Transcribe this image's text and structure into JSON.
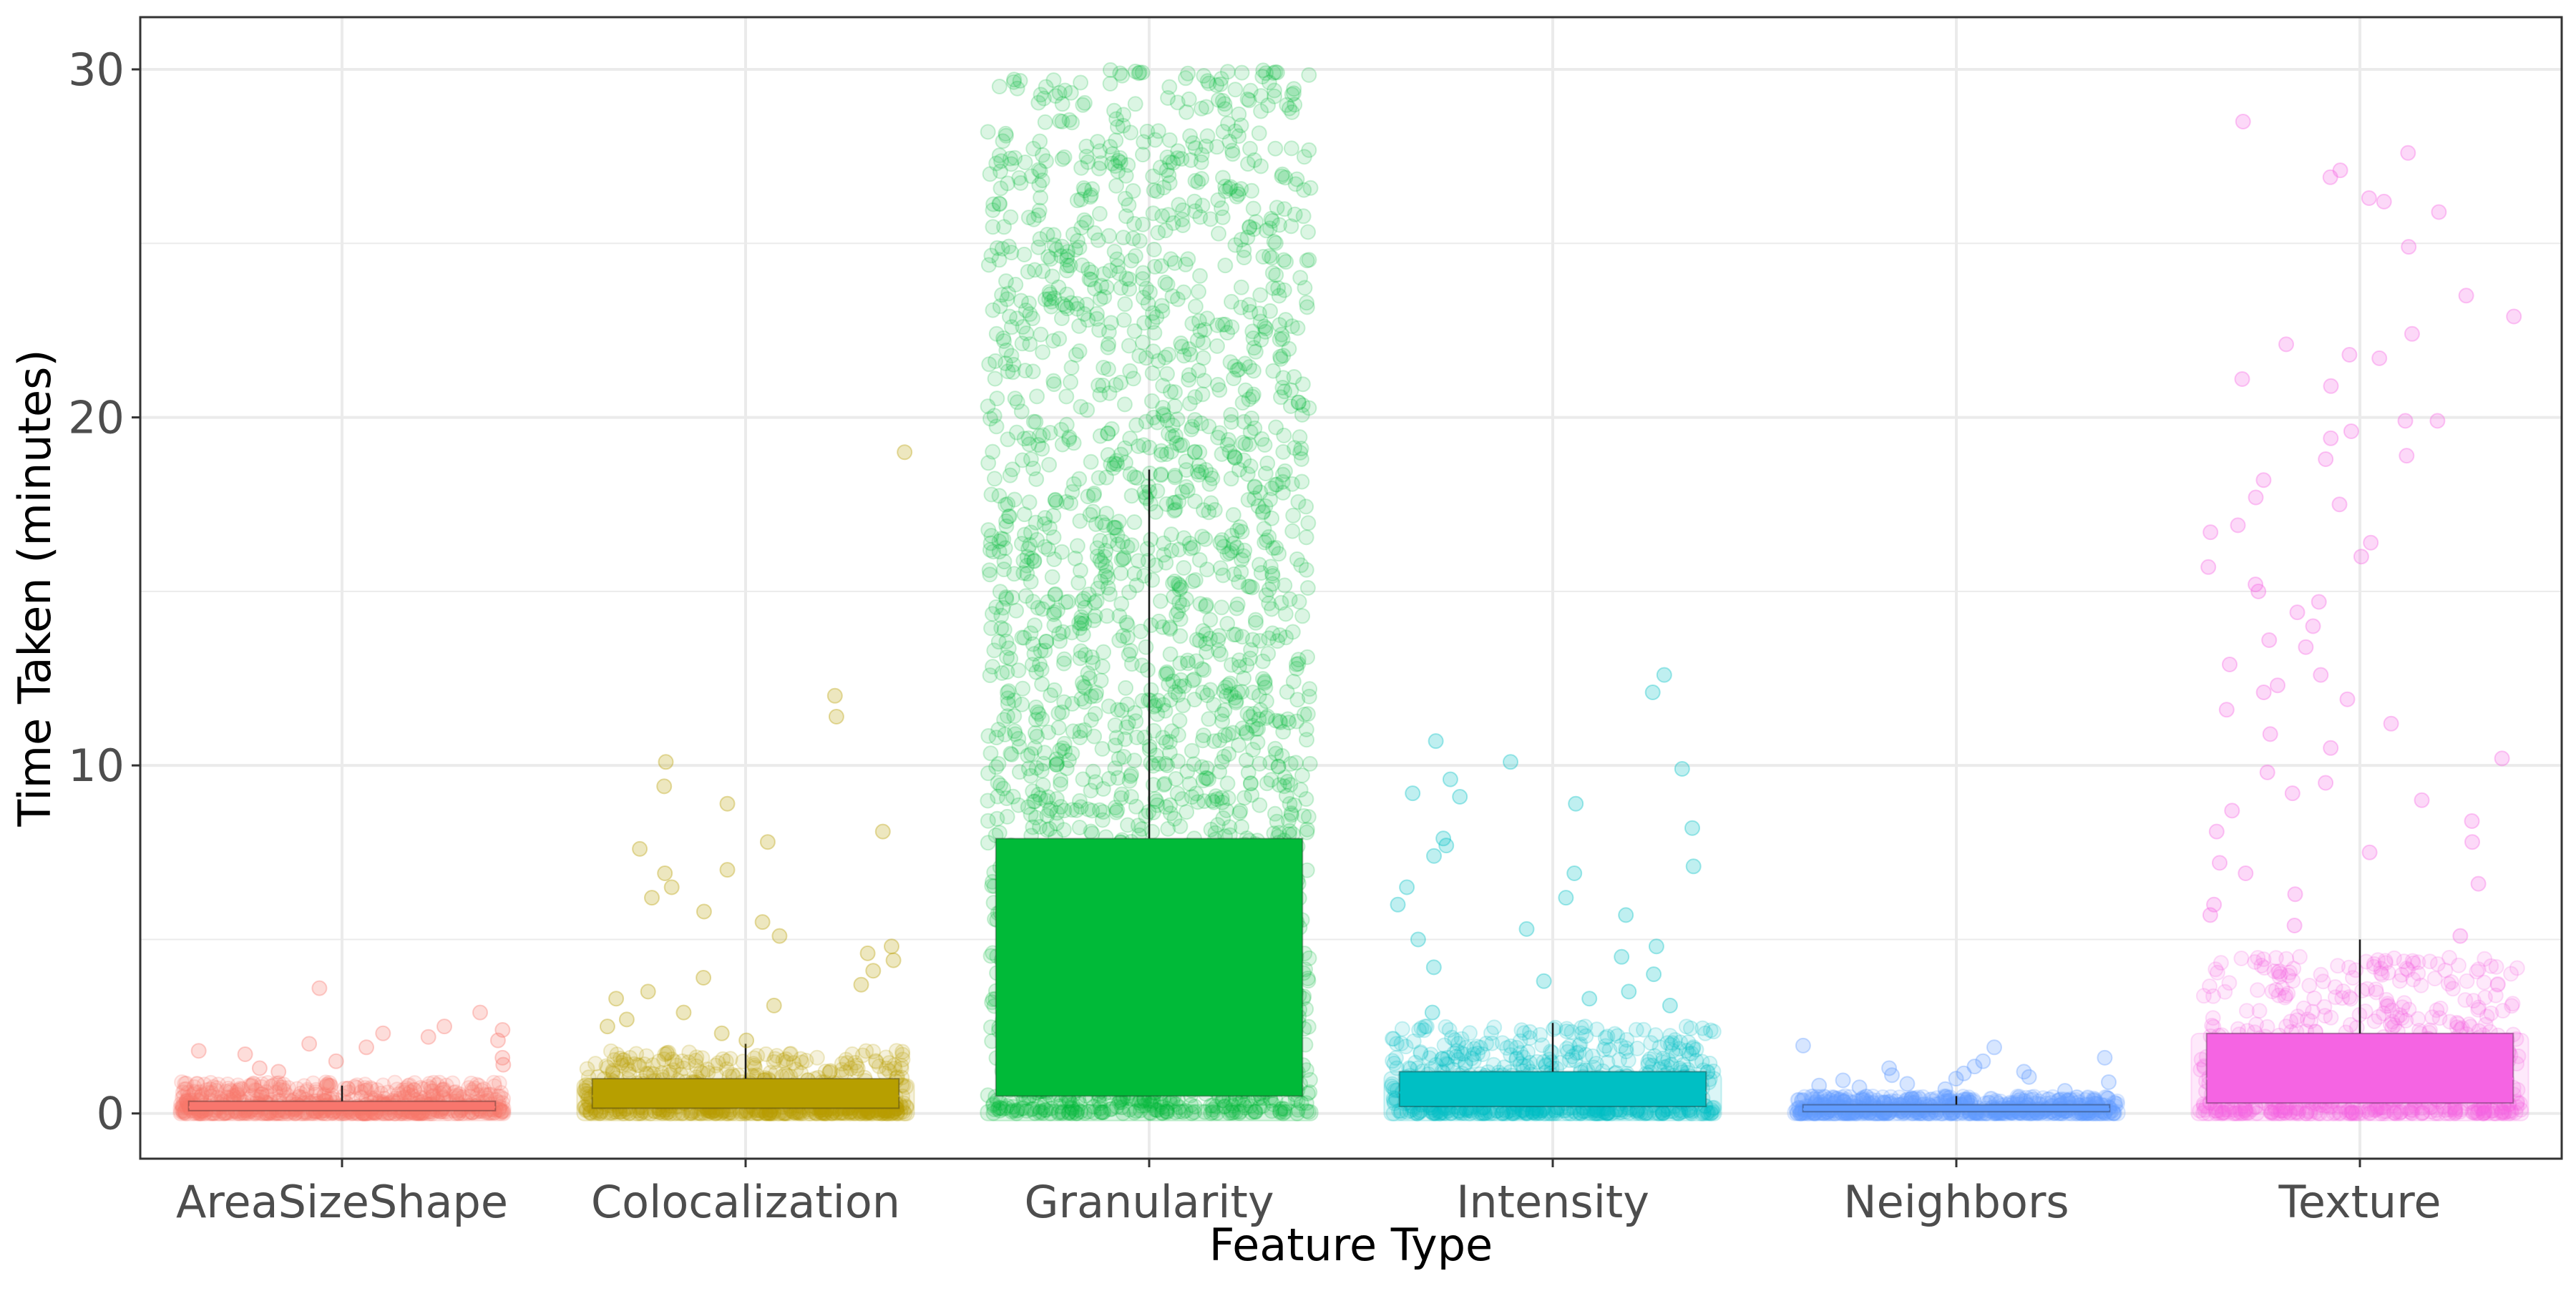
{
  "chart_data": {
    "type": "scatter",
    "subtype": "jittered strip plot with boxplot overlay",
    "title": "",
    "xlabel": "Feature Type",
    "ylabel": "Time Taken (minutes)",
    "ylim": [
      -1.3,
      31.5
    ],
    "yticks": [
      0,
      10,
      20,
      30
    ],
    "grid": true,
    "legend": "none",
    "panel_background": "#ffffff",
    "grid_color": "#ebebeb",
    "panel_border_color": "#333333",
    "categories": [
      "AreaSizeShape",
      "Colocalization",
      "Granularity",
      "Intensity",
      "Neighbors",
      "Texture"
    ],
    "series": [
      {
        "category": "AreaSizeShape",
        "color": "#F8766D",
        "box": {
          "q1": 0.08,
          "median": 0.18,
          "q3": 0.35,
          "whisker_low": 0.0,
          "whisker_high": 0.8
        },
        "dense_max": 0.9,
        "outliers": [
          3.6,
          2.9,
          2.5,
          2.4,
          2.3,
          2.2,
          2.1,
          2.0,
          1.9,
          1.8,
          1.7,
          1.6,
          1.5,
          1.4,
          1.3,
          1.2
        ]
      },
      {
        "category": "Colocalization",
        "color": "#B79F00",
        "box": {
          "q1": 0.15,
          "median": 0.5,
          "q3": 1.0,
          "whisker_low": 0.0,
          "whisker_high": 2.0
        },
        "dense_max": 1.8,
        "outliers": [
          19.0,
          12.0,
          11.4,
          10.1,
          9.4,
          8.9,
          8.1,
          7.8,
          7.6,
          7.0,
          6.9,
          6.5,
          6.2,
          5.8,
          5.5,
          5.1,
          4.8,
          4.6,
          4.4,
          4.1,
          3.9,
          3.7,
          3.5,
          3.3,
          3.1,
          2.9,
          2.7,
          2.5,
          2.3,
          2.1
        ]
      },
      {
        "category": "Granularity",
        "color": "#00BA38",
        "box": {
          "q1": 0.5,
          "median": 3.0,
          "q3": 7.9,
          "whisker_low": 0.0,
          "whisker_high": 18.5
        },
        "dense_max": 30.0,
        "outliers": []
      },
      {
        "category": "Intensity",
        "color": "#00BFC4",
        "box": {
          "q1": 0.2,
          "median": 0.6,
          "q3": 1.2,
          "whisker_low": 0.0,
          "whisker_high": 2.6
        },
        "dense_max": 2.5,
        "outliers": [
          12.6,
          12.1,
          10.7,
          10.1,
          9.9,
          9.6,
          9.2,
          9.1,
          8.9,
          8.2,
          7.9,
          7.7,
          7.4,
          7.1,
          6.9,
          6.5,
          6.2,
          6.0,
          5.7,
          5.3,
          5.0,
          4.8,
          4.5,
          4.2,
          4.0,
          3.8,
          3.5,
          3.3,
          3.1,
          2.9
        ]
      },
      {
        "category": "Neighbors",
        "color": "#619CFF",
        "box": {
          "q1": 0.05,
          "median": 0.12,
          "q3": 0.25,
          "whisker_low": 0.0,
          "whisker_high": 0.5
        },
        "dense_max": 0.5,
        "outliers": [
          1.95,
          1.9,
          1.6,
          1.5,
          1.35,
          1.3,
          1.2,
          1.15,
          1.1,
          1.05,
          1.0,
          0.95,
          0.9,
          0.85,
          0.8,
          0.75,
          0.7,
          0.65
        ]
      },
      {
        "category": "Texture",
        "color": "#F564E3",
        "box": {
          "q1": 0.3,
          "median": 1.0,
          "q3": 2.3,
          "whisker_low": 0.0,
          "whisker_high": 5.0
        },
        "dense_max": 4.5,
        "outliers": [
          28.5,
          27.6,
          27.1,
          26.9,
          26.3,
          26.2,
          25.9,
          24.9,
          23.5,
          22.9,
          22.4,
          22.1,
          21.8,
          21.7,
          21.1,
          20.9,
          19.9,
          19.9,
          19.6,
          19.4,
          18.9,
          18.8,
          18.2,
          17.7,
          17.5,
          16.9,
          16.7,
          16.4,
          16.0,
          15.7,
          15.2,
          15.0,
          14.7,
          14.4,
          14.0,
          13.6,
          13.4,
          12.9,
          12.6,
          12.3,
          12.1,
          11.9,
          11.6,
          11.2,
          10.9,
          10.5,
          10.2,
          9.8,
          9.5,
          9.2,
          9.0,
          8.7,
          8.4,
          8.1,
          7.8,
          7.5,
          7.2,
          6.9,
          6.6,
          6.3,
          6.0,
          5.7,
          5.4,
          5.1
        ]
      }
    ]
  }
}
